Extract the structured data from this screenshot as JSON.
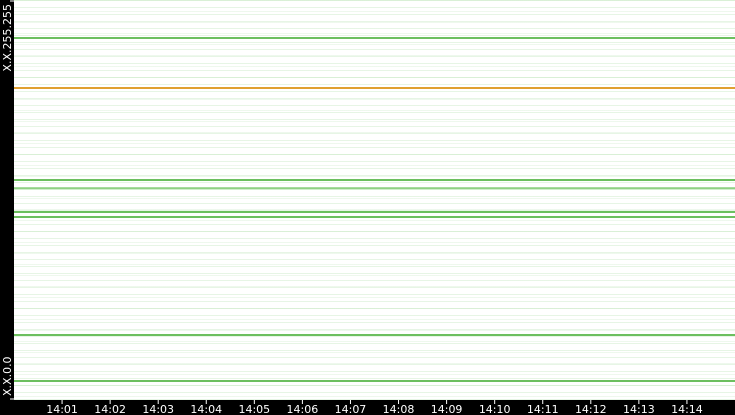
{
  "chart_data": {
    "type": "scatter",
    "xlim": [
      840,
      855
    ],
    "xticks": [
      {
        "value": 841,
        "label": "14:01"
      },
      {
        "value": 842,
        "label": "14:02"
      },
      {
        "value": 843,
        "label": "14:03"
      },
      {
        "value": 844,
        "label": "14:04"
      },
      {
        "value": 845,
        "label": "14:05"
      },
      {
        "value": 846,
        "label": "14:06"
      },
      {
        "value": 847,
        "label": "14:07"
      },
      {
        "value": 848,
        "label": "14:08"
      },
      {
        "value": 849,
        "label": "14:09"
      },
      {
        "value": 850,
        "label": "14:10"
      },
      {
        "value": 851,
        "label": "14:11"
      },
      {
        "value": 852,
        "label": "14:12"
      },
      {
        "value": 853,
        "label": "14:13"
      },
      {
        "value": 854,
        "label": "14:14"
      }
    ],
    "ylim": [
      0,
      65535
    ],
    "yticks": [
      {
        "value": 0,
        "label": "X.X.0.0"
      },
      {
        "value": 65535,
        "label": "X.X.255.255"
      }
    ],
    "lines": [
      {
        "y": 59309,
        "color": "#6cbf5f"
      },
      {
        "y": 51117,
        "color": "#e0a030"
      },
      {
        "y": 36044,
        "color": "#6cbf5f"
      },
      {
        "y": 34700,
        "color": "#8fd183"
      },
      {
        "y": 30801,
        "color": "#6cbf5f"
      },
      {
        "y": 29982,
        "color": "#6cbf5f"
      },
      {
        "y": 10649,
        "color": "#6cbf5f"
      },
      {
        "y": 3113,
        "color": "#6cbf5f"
      }
    ]
  }
}
